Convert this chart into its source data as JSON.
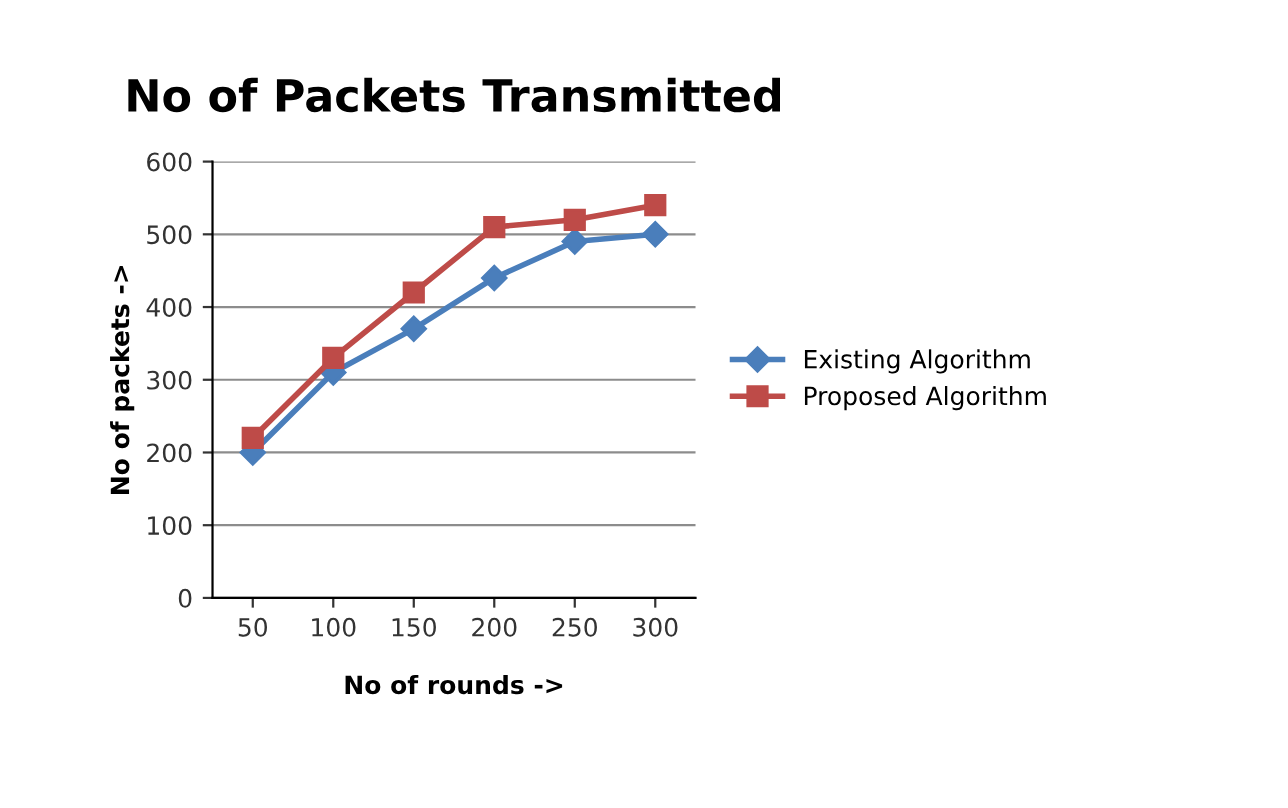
{
  "chart_data": {
    "type": "line",
    "title": "No of Packets Transmitted",
    "xlabel": "No of rounds ->",
    "ylabel": "No of packets ->",
    "categories": [
      "50",
      "100",
      "150",
      "200",
      "250",
      "300"
    ],
    "series": [
      {
        "name": "Existing Algorithm",
        "color": "#4a7ebb",
        "marker": "diamond",
        "values": [
          200,
          310,
          370,
          440,
          490,
          500
        ]
      },
      {
        "name": "Proposed Algorithm",
        "color": "#be4b48",
        "marker": "square",
        "values": [
          220,
          330,
          420,
          510,
          520,
          540
        ]
      }
    ],
    "ylim": [
      0,
      600
    ],
    "yticks": [
      0,
      100,
      200,
      300,
      400,
      500,
      600
    ],
    "grid": "y",
    "legend": "right",
    "line_style": "solid"
  }
}
